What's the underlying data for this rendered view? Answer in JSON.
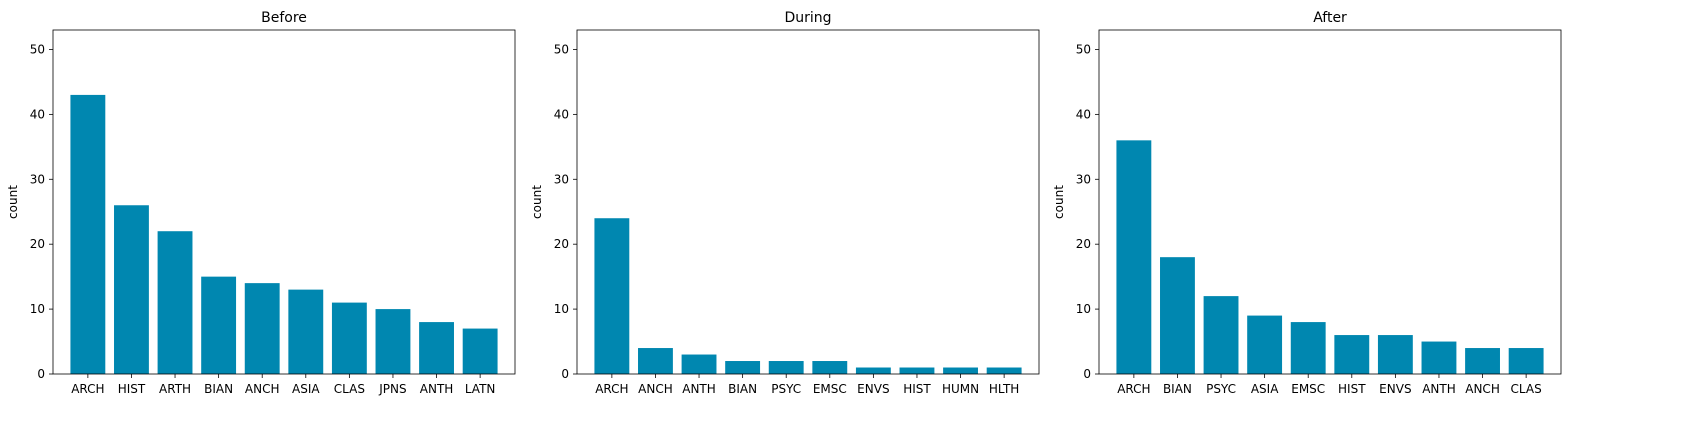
{
  "chart_data": [
    {
      "type": "bar",
      "title": "Before",
      "xlabel": "",
      "ylabel": "count",
      "ylim": [
        0,
        53
      ],
      "yticks": [
        0,
        10,
        20,
        30,
        40,
        50
      ],
      "categories": [
        "ARCH",
        "HIST",
        "ARTH",
        "BIAN",
        "ANCH",
        "ASIA",
        "CLAS",
        "JPNS",
        "ANTH",
        "LATN"
      ],
      "values": [
        43,
        26,
        22,
        15,
        14,
        13,
        11,
        10,
        8,
        7
      ],
      "color": "#0087b0"
    },
    {
      "type": "bar",
      "title": "During",
      "xlabel": "",
      "ylabel": "count",
      "ylim": [
        0,
        53
      ],
      "yticks": [
        0,
        10,
        20,
        30,
        40,
        50
      ],
      "categories": [
        "ARCH",
        "ANCH",
        "ANTH",
        "BIAN",
        "PSYC",
        "EMSC",
        "ENVS",
        "HIST",
        "HUMN",
        "HLTH"
      ],
      "values": [
        24,
        4,
        3,
        2,
        2,
        2,
        1,
        1,
        1,
        1
      ],
      "color": "#0087b0"
    },
    {
      "type": "bar",
      "title": "After",
      "xlabel": "",
      "ylabel": "count",
      "ylim": [
        0,
        53
      ],
      "yticks": [
        0,
        10,
        20,
        30,
        40,
        50
      ],
      "categories": [
        "ARCH",
        "BIAN",
        "PSYC",
        "ASIA",
        "EMSC",
        "HIST",
        "ENVS",
        "ANTH",
        "ANCH",
        "CLAS"
      ],
      "values": [
        36,
        18,
        12,
        9,
        8,
        6,
        6,
        5,
        4,
        4
      ],
      "color": "#0087b0"
    }
  ]
}
